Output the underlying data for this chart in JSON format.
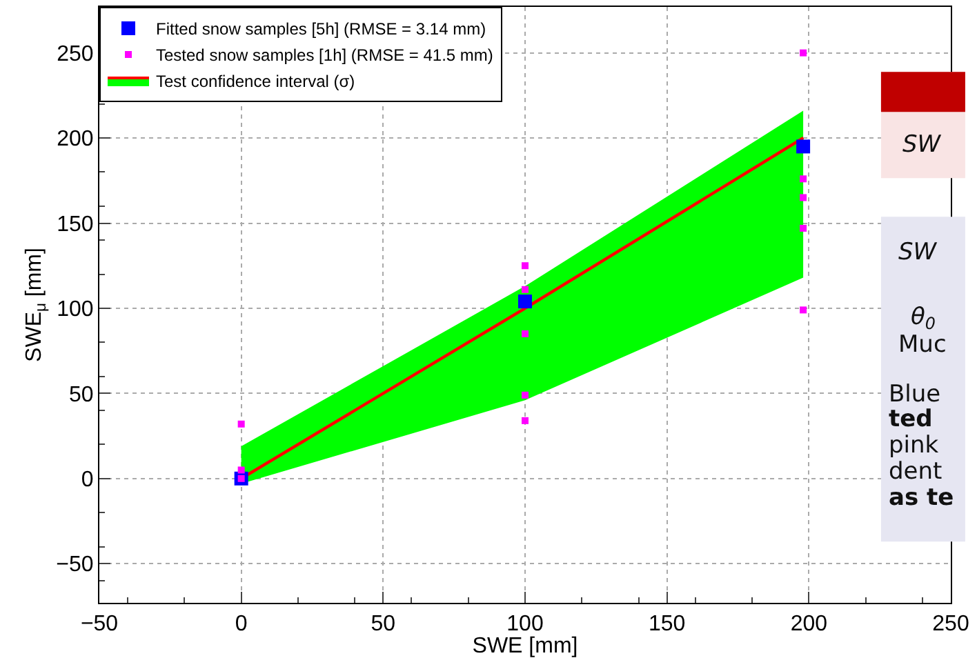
{
  "chart_data": {
    "type": "scatter",
    "xlabel": "SWE [mm]",
    "ylabel": "SWE$_{μ}$ [mm]",
    "xlim": [
      -50,
      250
    ],
    "xticks": [
      -50,
      0,
      50,
      100,
      150,
      200,
      250
    ],
    "ylim": [
      -73,
      277
    ],
    "yticks": [
      -50,
      0,
      50,
      100,
      150,
      200,
      250
    ],
    "grid": true,
    "legend": "top left",
    "marker": "square",
    "series": [
      {
        "type": "line",
        "marker": "none",
        "name": "Test confidence interval (σ)",
        "color": "#ff0000",
        "x": [
          0,
          100,
          198
        ],
        "values": [
          0,
          100,
          200
        ],
        "lower": [
          -3,
          46,
          118
        ],
        "upper": [
          19,
          113,
          216
        ]
      },
      {
        "name": "Fitted snow samples [5h] (RMSE = 3.14 mm)",
        "color": "#0000ff",
        "x": [
          0,
          100,
          198
        ],
        "values": [
          0,
          104,
          195
        ]
      },
      {
        "name": "Tested snow samples [1h] (RMSE = 41.5 mm)",
        "color": "#ff00ff",
        "x": [
          0,
          0,
          0,
          100,
          100,
          100,
          100,
          100,
          198,
          198,
          198,
          198,
          198
        ],
        "values": [
          32,
          5,
          0,
          125,
          111,
          85,
          49,
          34,
          250,
          176,
          165,
          147,
          99
        ]
      }
    ],
    "annotations": [
      "SW",
      "SW",
      "θ$_{0}$",
      "Muc",
      "Blue",
      "ted",
      "pink",
      "dent",
      "as te"
    ]
  }
}
